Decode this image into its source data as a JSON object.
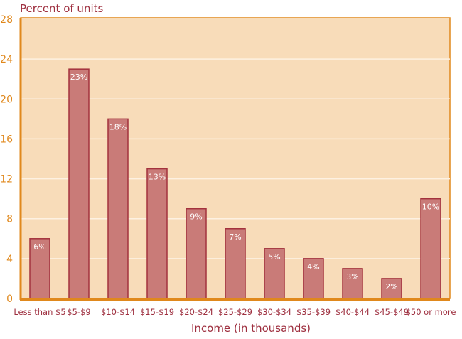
{
  "chart_data": {
    "type": "bar",
    "title": "",
    "ylabel": "Percent of units",
    "xlabel": "Income (in thousands)",
    "ylim": [
      0,
      28
    ],
    "yticks": [
      0,
      4,
      8,
      12,
      16,
      20,
      24,
      28
    ],
    "grid": true,
    "categories": [
      "Less than $5",
      "$5-$9",
      "$10-$14",
      "$15-$19",
      "$20-$24",
      "$25-$29",
      "$30-$34",
      "$35-$39",
      "$40-$44",
      "$45-$49",
      "$50 or more"
    ],
    "values": [
      6,
      23,
      18,
      13,
      9,
      7,
      5,
      4,
      3,
      2,
      10
    ],
    "data_labels": [
      "6%",
      "23%",
      "18%",
      "13%",
      "9%",
      "7%",
      "5%",
      "4%",
      "3%",
      "2%",
      "10%"
    ],
    "colors": {
      "plot_bg": "#f8dcb9",
      "axis": "#e0881c",
      "bar": "#c97b78",
      "bar_stroke": "#a3323d",
      "text": "#9e2f3f",
      "grid": "#fdf1e2"
    }
  }
}
